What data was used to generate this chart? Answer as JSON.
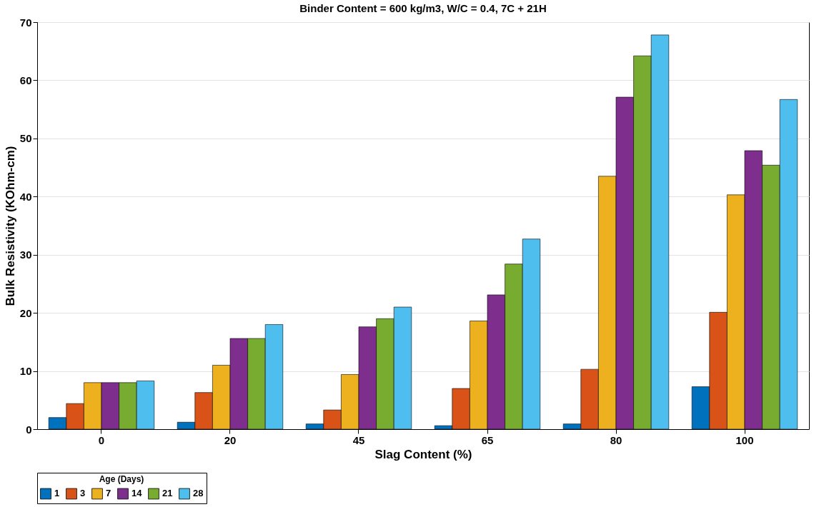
{
  "chart_data": {
    "type": "bar",
    "title": "Binder Content = 600 kg/m3, W/C = 0.4, 7C + 21H",
    "xlabel": "Slag Content (%)",
    "ylabel": "Bulk Resistivity (KOhm-cm)",
    "legend_title": "Age (Days)",
    "categories": [
      "0",
      "20",
      "45",
      "65",
      "80",
      "100"
    ],
    "series": [
      {
        "name": "1",
        "color": "#0072bd",
        "values": [
          2.0,
          1.2,
          0.9,
          0.6,
          0.9,
          7.3
        ]
      },
      {
        "name": "3",
        "color": "#d95319",
        "values": [
          4.4,
          6.3,
          3.3,
          7.0,
          10.3,
          20.1
        ]
      },
      {
        "name": "7",
        "color": "#edb120",
        "values": [
          8.0,
          11.0,
          9.4,
          18.6,
          43.5,
          40.3
        ]
      },
      {
        "name": "14",
        "color": "#7e2f8e",
        "values": [
          8.0,
          15.6,
          17.6,
          23.1,
          57.1,
          47.9
        ]
      },
      {
        "name": "21",
        "color": "#77ac30",
        "values": [
          8.0,
          15.6,
          19.0,
          28.4,
          64.2,
          45.4
        ]
      },
      {
        "name": "28",
        "color": "#4dbeee",
        "values": [
          8.3,
          18.0,
          21.0,
          32.7,
          67.8,
          56.7
        ]
      }
    ],
    "ylim": [
      0,
      70
    ],
    "yticks": [
      0,
      10,
      20,
      30,
      40,
      50,
      60,
      70
    ],
    "grid": "y",
    "legend": "bottom"
  }
}
